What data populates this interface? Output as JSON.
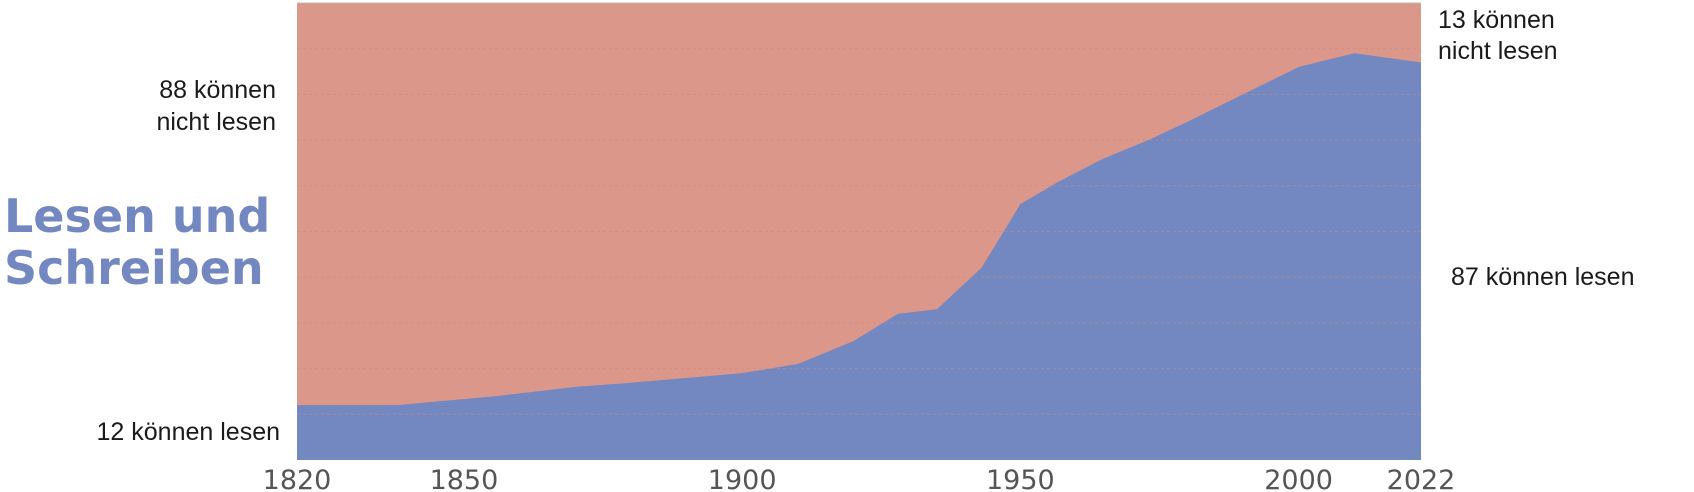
{
  "title_lines": [
    "Lesen und",
    "Schreiben"
  ],
  "colors": {
    "can_read": "#7387c1",
    "cannot_read": "#dc978b",
    "title": "#7387c1",
    "grid": "#cf8a80"
  },
  "chart_data": {
    "type": "area",
    "stacked": true,
    "x": [
      1820,
      1838,
      1856,
      1870,
      1881,
      1900,
      1910,
      1920,
      1928,
      1935,
      1943,
      1950,
      1957,
      1965,
      1973,
      1980,
      1990,
      2000,
      2010,
      2022
    ],
    "series": [
      {
        "key": "can_read",
        "values": [
          12,
          12,
          14,
          16,
          17,
          19,
          21,
          26,
          32,
          33,
          42,
          56,
          61,
          66,
          70,
          74,
          80,
          86,
          89,
          87
        ]
      },
      {
        "key": "cannot_read",
        "values": [
          88,
          88,
          86,
          84,
          83,
          81,
          79,
          74,
          68,
          67,
          58,
          44,
          39,
          34,
          30,
          26,
          20,
          14,
          11,
          13
        ]
      }
    ],
    "ylim": [
      0,
      100
    ],
    "xlim": [
      1820,
      2022
    ],
    "x_ticks": [
      1820,
      1850,
      1900,
      1950,
      2000,
      2022
    ],
    "grid": true,
    "start_labels": {
      "top": [
        "88 können",
        "nicht lesen"
      ],
      "bottom": "12 können lesen"
    },
    "end_labels": {
      "top": [
        "13 können",
        "nicht lesen"
      ],
      "bottom": "87 können lesen"
    }
  }
}
